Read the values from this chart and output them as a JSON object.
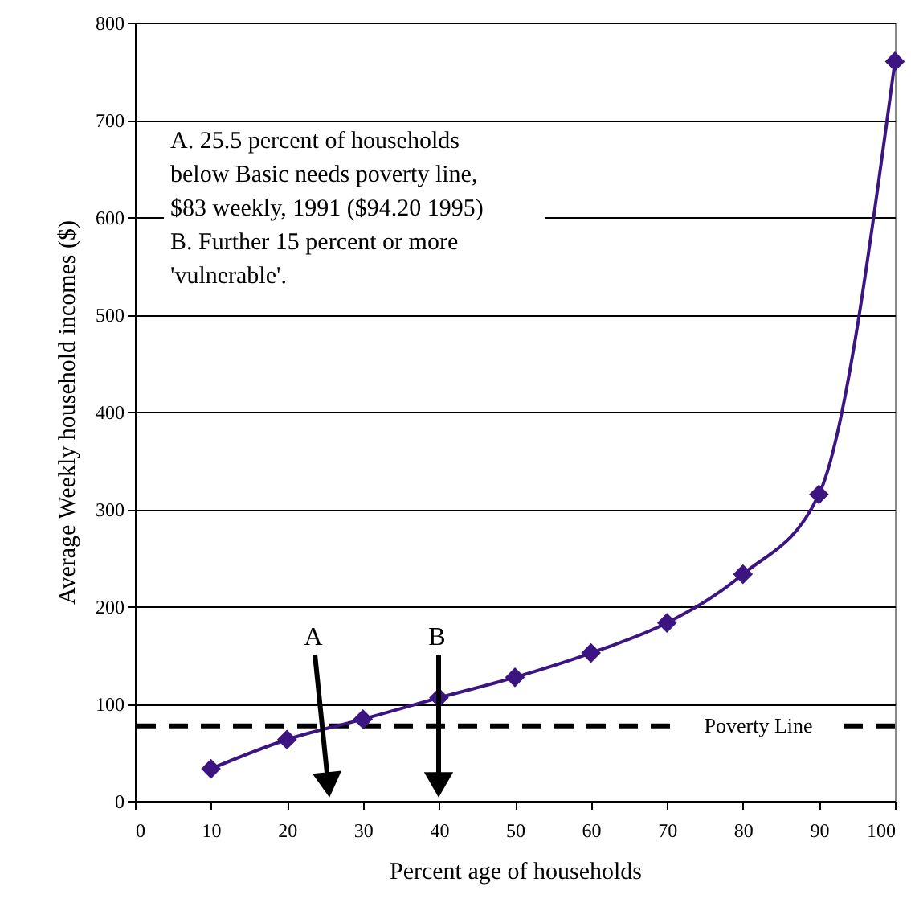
{
  "chart_data": {
    "type": "line",
    "xlabel": "Percent age of households",
    "ylabel": "Average Weekly household incomes ($)",
    "x": [
      10,
      20,
      30,
      40,
      50,
      60,
      70,
      80,
      90,
      100
    ],
    "series": [
      {
        "color": "#3d1580",
        "values": [
          33,
          63,
          84,
          106,
          127,
          152,
          183,
          233,
          315,
          760
        ]
      }
    ],
    "xlim": [
      0,
      100
    ],
    "xticks": [
      0,
      10,
      20,
      30,
      40,
      50,
      60,
      70,
      80,
      90,
      100
    ],
    "ylim": [
      0,
      800
    ],
    "yticks": [
      0,
      100,
      200,
      300,
      400,
      500,
      600,
      700,
      800
    ],
    "grid": "y",
    "marker": "diamond",
    "line_style": "solid",
    "ref_lines": [
      {
        "axis": "y",
        "value": 77,
        "label": "Poverty Line",
        "line_style": "dashed",
        "color": "#000000"
      }
    ],
    "annotations": [
      "A. 25.5 percent of households\nbelow Basic needs poverty line,\n$83 weekly, 1991 ($94.20 1995)\nB. Further 15 percent or more\n'vulnerable'.",
      "A",
      "B"
    ]
  }
}
